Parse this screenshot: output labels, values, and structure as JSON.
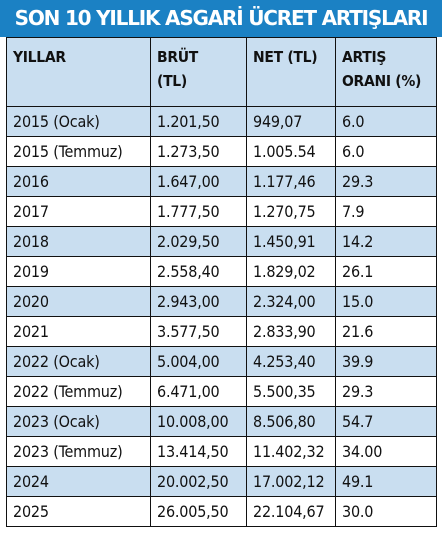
{
  "title": "SON 10 YILLIK ASGARİ ÜCRET ARTIŞLARI",
  "headers": {
    "year": "YILLAR",
    "gross": [
      "BRÜT",
      "(TL)"
    ],
    "net": "NET (TL)",
    "rate": [
      "ARTIŞ",
      "ORANI (%)"
    ]
  },
  "rows": [
    {
      "year": "2015 (Ocak)",
      "gross": "1.201,50",
      "net": "949,07",
      "rate": "6.0"
    },
    {
      "year": "2015 (Temmuz)",
      "gross": "1.273,50",
      "net": "1.005.54",
      "rate": "6.0"
    },
    {
      "year": "2016",
      "gross": "1.647,00",
      "net": "1.177,46",
      "rate": "29.3"
    },
    {
      "year": "2017",
      "gross": "1.777,50",
      "net": "1.270,75",
      "rate": "7.9"
    },
    {
      "year": "2018",
      "gross": "2.029,50",
      "net": "1.450,91",
      "rate": "14.2"
    },
    {
      "year": "2019",
      "gross": "2.558,40",
      "net": "1.829,02",
      "rate": "26.1"
    },
    {
      "year": "2020",
      "gross": "2.943,00",
      "net": "2.324,00",
      "rate": "15.0"
    },
    {
      "year": "2021",
      "gross": "3.577,50",
      "net": "2.833,90",
      "rate": "21.6"
    },
    {
      "year": "2022 (Ocak)",
      "gross": "5.004,00",
      "net": "4.253,40",
      "rate": "39.9"
    },
    {
      "year": "2022 (Temmuz)",
      "gross": "6.471,00",
      "net": "5.500,35",
      "rate": "29.3"
    },
    {
      "year": "2023 (Ocak)",
      "gross": "10.008,00",
      "net": "8.506,80",
      "rate": "54.7"
    },
    {
      "year": "2023 (Temmuz)",
      "gross": "13.414,50",
      "net": "11.402,32",
      "rate": "34.00"
    },
    {
      "year": "2024",
      "gross": "20.002,50",
      "net": "17.002,12",
      "rate": "49.1"
    },
    {
      "year": "2025",
      "gross": "26.005,50",
      "net": "22.104,67",
      "rate": "30.0"
    }
  ],
  "colors": {
    "title_bg": "#1b81c4",
    "title_text": "#ffffff",
    "stripe": "#c9def0",
    "border": "#111111"
  }
}
